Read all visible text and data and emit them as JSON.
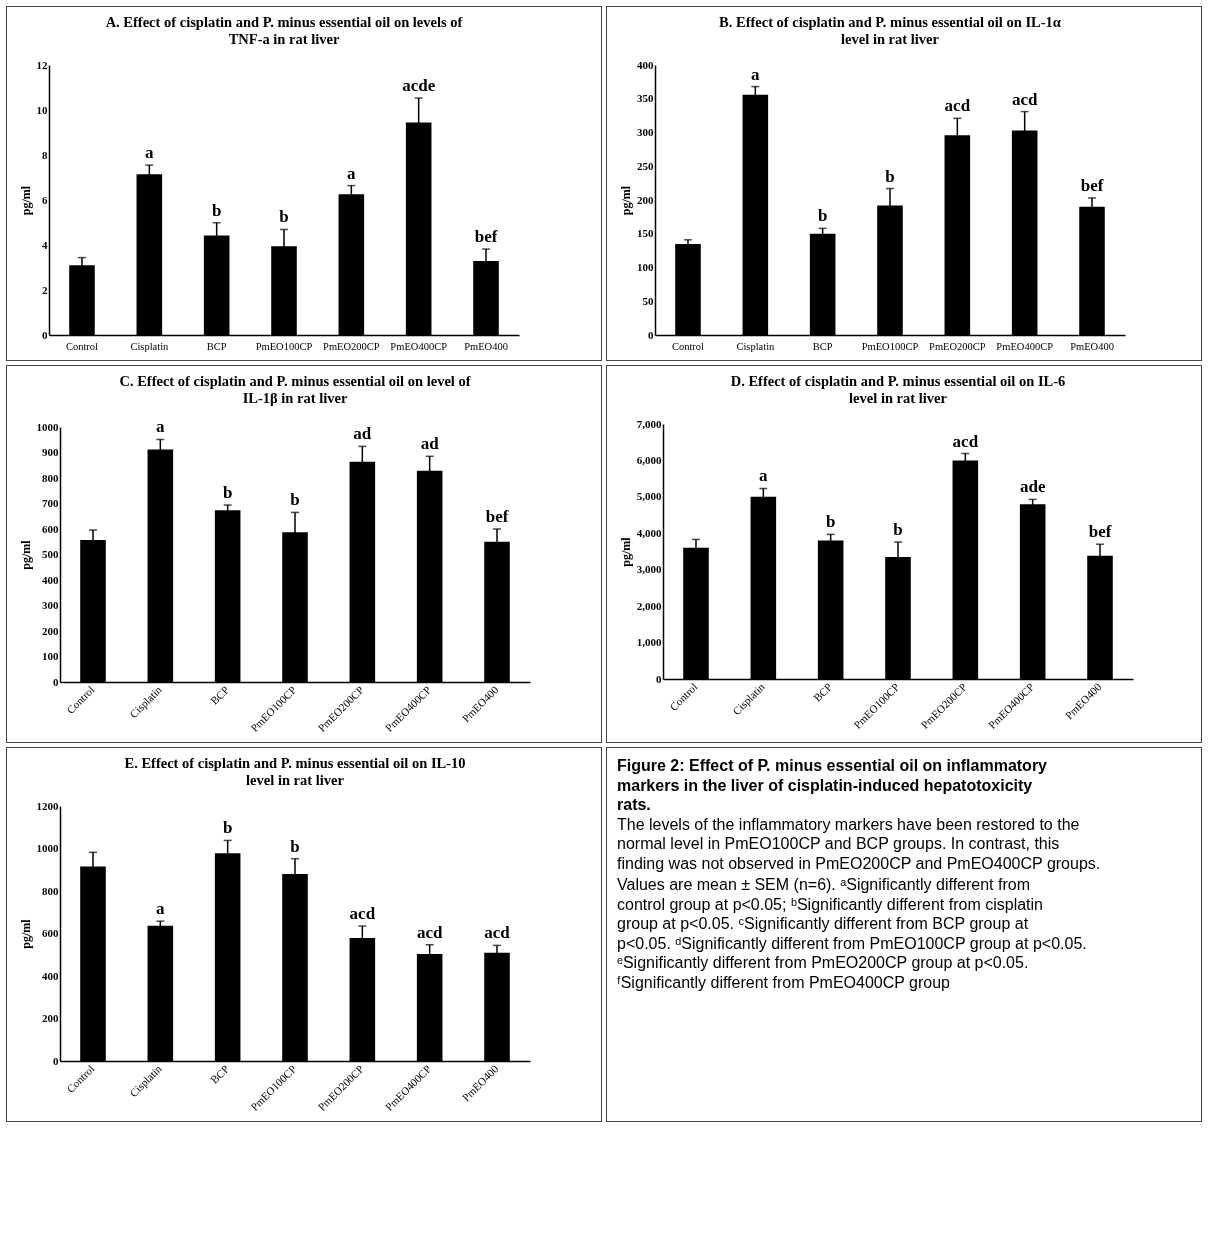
{
  "chart_data": [
    {
      "type": "bar",
      "title": "A. Effect of cisplatin and P. minus essential oil on levels of TNF-a in rat liver",
      "ylabel": "pg/ml",
      "categories": [
        "Control",
        "Cisplatin",
        "BCP",
        "PmEO100CP",
        "PmEO200CP",
        "PmEO400CP",
        "PmEO400"
      ],
      "values": [
        3.1,
        7.15,
        4.42,
        3.95,
        6.26,
        9.45,
        3.29
      ],
      "errors": [
        0.34,
        0.4,
        0.57,
        0.74,
        0.38,
        1.08,
        0.53
      ],
      "value_labels": [
        null,
        "a",
        "b",
        "b",
        "a",
        "acde",
        "bef"
      ],
      "color": "#000000",
      "ylim": [
        0,
        12
      ],
      "yticks": [
        0,
        2,
        4,
        6,
        8,
        10,
        12
      ]
    },
    {
      "type": "bar",
      "title": "B. Effect of cisplatin and P. minus essential oil on IL-1α level in rat liver",
      "ylabel": "pg/ml",
      "categories": [
        "Control",
        "Cisplatin",
        "BCP",
        "PmEO100CP",
        "PmEO200CP",
        "PmEO400CP",
        "PmEO400"
      ],
      "values": [
        135,
        356,
        150,
        192,
        296,
        303,
        190
      ],
      "errors": [
        6,
        12,
        8,
        25,
        25,
        28,
        13
      ],
      "value_labels": [
        null,
        "a",
        "b",
        "b",
        "acd",
        "acd",
        "bef"
      ],
      "color": "#000000",
      "ylim": [
        0,
        400
      ],
      "yticks": [
        0,
        50,
        100,
        150,
        200,
        250,
        300,
        350,
        400
      ]
    },
    {
      "type": "bar",
      "title": "C. Effect of cisplatin and P. minus essential oil on level of IL-1β in rat liver",
      "ylabel": "pg/ml",
      "categories": [
        "Control",
        "Cisplatin",
        "BCP",
        "PmEO100CP",
        "PmEO200CP",
        "PmEO400CP",
        "PmEO400"
      ],
      "values": [
        557,
        912,
        674,
        587,
        864,
        828,
        550
      ],
      "errors": [
        39,
        39,
        20,
        78,
        60,
        57,
        50
      ],
      "value_labels": [
        null,
        "a",
        "b",
        "b",
        "ad",
        "ad",
        "bef"
      ],
      "color": "#000000",
      "ylim": [
        0,
        1000
      ],
      "yticks": [
        0,
        100,
        200,
        300,
        400,
        500,
        600,
        700,
        800,
        900,
        1000
      ]
    },
    {
      "type": "bar",
      "title": "D. Effect of cisplatin and P. minus essential oil on IL-6 level in rat liver",
      "ylabel": "pg/ml",
      "categories": [
        "Control",
        "Cisplatin",
        "BCP",
        "PmEO100CP",
        "PmEO200CP",
        "PmEO400CP",
        "PmEO400"
      ],
      "values": [
        3600,
        5000,
        3800,
        3350,
        6000,
        4800,
        3380
      ],
      "errors": [
        230,
        230,
        170,
        410,
        190,
        130,
        320
      ],
      "value_labels": [
        null,
        "a",
        "b",
        "b",
        "acd",
        "ade",
        "bef"
      ],
      "color": "#000000",
      "ylim": [
        0,
        7000
      ],
      "yticks": [
        0,
        {
          "value": 1000,
          "label": "1,000"
        },
        {
          "value": 2000,
          "label": "2,000"
        },
        {
          "value": 3000,
          "label": "3,000"
        },
        {
          "value": 4000,
          "label": "4,000"
        },
        {
          "value": 5000,
          "label": "5,000"
        },
        {
          "value": 6000,
          "label": "6,000"
        },
        {
          "value": 7000,
          "label": "7,000"
        }
      ]
    },
    {
      "type": "bar",
      "title": "E. Effect of cisplatin and P. minus essential oil on IL-10 level in rat liver",
      "ylabel": "pg/ml",
      "categories": [
        "Control",
        "Cisplatin",
        "BCP",
        "PmEO100CP",
        "PmEO200CP",
        "PmEO400CP",
        "PmEO400"
      ],
      "values": [
        915,
        637,
        978,
        880,
        579,
        503,
        510
      ],
      "errors": [
        67,
        21,
        60,
        72,
        56,
        44,
        34
      ],
      "value_labels": [
        null,
        "a",
        "b",
        "b",
        "acd",
        "acd",
        "acd"
      ],
      "color": "#000000",
      "ylim": [
        0,
        1200
      ],
      "yticks": [
        0,
        200,
        400,
        600,
        800,
        1000,
        1200
      ]
    },
    {
      "type": "other",
      "title": "Figure 2: Effect of P. minus essential oil on inflammatory markers in the liver of cisplatin-induced hepatotoxicity rats.",
      "annotations": [
        "The levels of the inflammatory markers have been restored to the normal level in PmEO100CP and BCP groups. In contrast, this finding was not observed in PmEO200CP and PmEO400CP groups.",
        "Values are mean ± SEM (n=6). ᵃSignificantly different from control group at p<0.05; ᵇSignificantly different from cisplatin group at p<0.05. ᶜSignificantly different from BCP group at p<0.05. ᵈSignificantly different from PmEO100CP group at p<0.05. ᵉSignificantly different from PmEO200CP group at p<0.05. ᶠSignificantly different from PmEO400CP group"
      ]
    }
  ]
}
